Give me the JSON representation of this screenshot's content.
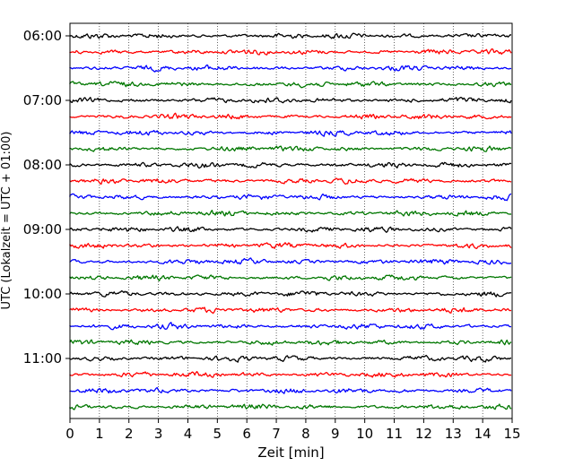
{
  "chart_data": {
    "type": "line",
    "title": "",
    "xlabel": "Zeit  [min]",
    "ylabel": "UTC (Lokalzeit = UTC + 01:00)",
    "xlim": [
      0,
      15
    ],
    "x_ticks": [
      0,
      1,
      2,
      3,
      4,
      5,
      6,
      7,
      8,
      9,
      10,
      11,
      12,
      13,
      14,
      15
    ],
    "grid": "vertical-dotted",
    "legend": "none",
    "y_ticks": [
      "06:00",
      "07:00",
      "08:00",
      "09:00",
      "10:00",
      "11:00"
    ],
    "trace_interval_min": 15,
    "trace_start": "06:00",
    "trace_count": 24,
    "trace_colors": [
      "#000000",
      "#ff0000",
      "#0000ff",
      "#007700"
    ]
  }
}
